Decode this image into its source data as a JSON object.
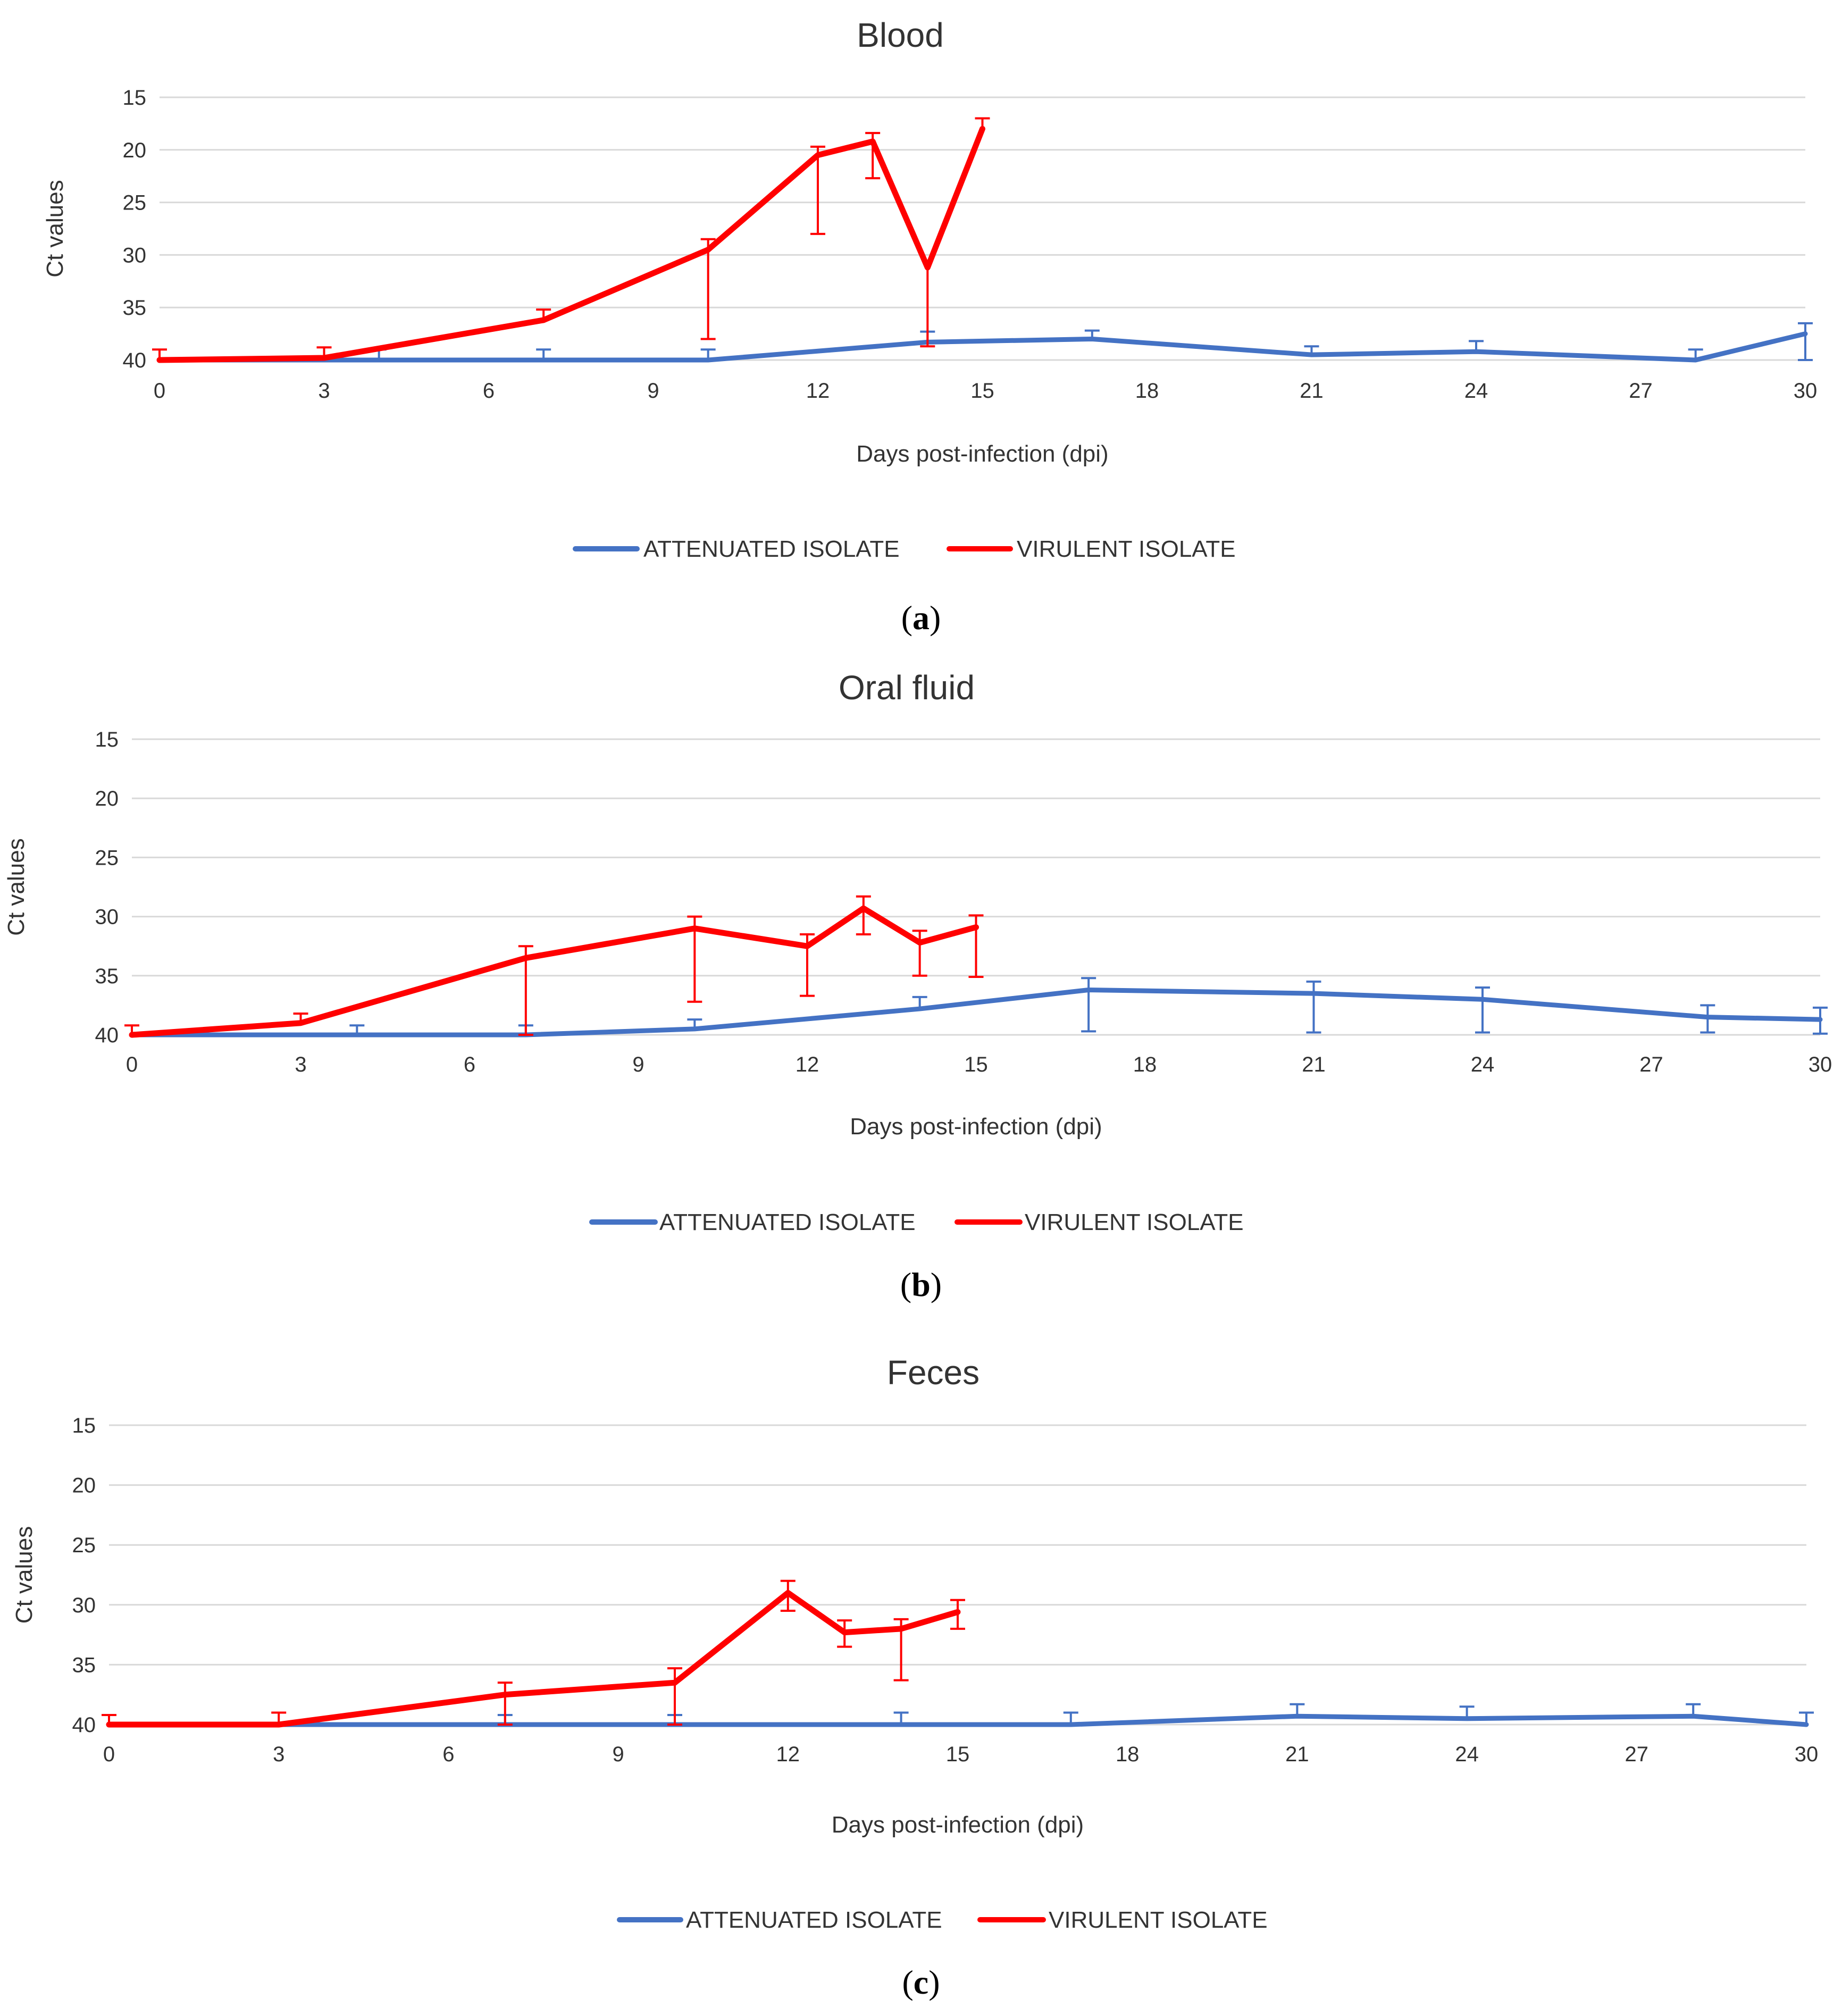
{
  "colors": {
    "attenuated": "#4472C4",
    "virulent": "#FF0000"
  },
  "chart_data": [
    {
      "type": "line",
      "title": "Blood",
      "caption_letter": "a",
      "ylabel": "Ct values",
      "xlabel": "Days post-infection (dpi)",
      "ylim": [
        15,
        40
      ],
      "y_inverted": true,
      "yticks": [
        15,
        20,
        25,
        30,
        35,
        40
      ],
      "xlim": [
        0,
        30
      ],
      "xticks": [
        0,
        3,
        6,
        9,
        12,
        15,
        18,
        21,
        24,
        27,
        30
      ],
      "legend_position": "bottom",
      "series": [
        {
          "name": "ATTENUATED ISOLATE",
          "color_key": "attenuated",
          "x": [
            0,
            4,
            7,
            10,
            14,
            17,
            21,
            24,
            28,
            30
          ],
          "y": [
            40,
            40,
            40,
            40,
            38.3,
            38.0,
            39.5,
            39.2,
            40,
            37.5
          ],
          "err_up": [
            0,
            1.0,
            1.0,
            1.0,
            1.0,
            0.8,
            0.8,
            1.0,
            1.0,
            1.0
          ],
          "err_down": [
            0,
            0,
            0,
            0,
            0,
            0,
            0,
            0,
            0,
            2.5
          ]
        },
        {
          "name": "VIRULENT ISOLATE",
          "color_key": "virulent",
          "x": [
            0,
            3,
            7,
            10,
            12,
            13,
            14,
            15
          ],
          "y": [
            40,
            39.8,
            36.2,
            29.5,
            20.5,
            19.2,
            31.2,
            18.0
          ],
          "err_up": [
            1.0,
            1.0,
            1.0,
            1.0,
            0.8,
            0.8,
            0,
            1.0
          ],
          "err_down": [
            0,
            0,
            0,
            8.5,
            7.5,
            3.5,
            7.5,
            0
          ]
        }
      ]
    },
    {
      "type": "line",
      "title": "Oral fluid",
      "caption_letter": "b",
      "ylabel": "Ct values",
      "xlabel": "Days post-infection (dpi)",
      "ylim": [
        15,
        40
      ],
      "y_inverted": true,
      "yticks": [
        15,
        20,
        25,
        30,
        35,
        40
      ],
      "xlim": [
        0,
        30
      ],
      "xticks": [
        0,
        3,
        6,
        9,
        12,
        15,
        18,
        21,
        24,
        27,
        30
      ],
      "legend_position": "bottom",
      "series": [
        {
          "name": "ATTENUATED ISOLATE",
          "color_key": "attenuated",
          "x": [
            0,
            4,
            7,
            10,
            14,
            17,
            21,
            24,
            28,
            30
          ],
          "y": [
            40,
            40,
            40,
            39.5,
            37.8,
            36.2,
            36.5,
            37.0,
            38.5,
            38.7
          ],
          "err_up": [
            0,
            0.8,
            0.8,
            0.8,
            1.0,
            1.0,
            1.0,
            1.0,
            1.0,
            1.0
          ],
          "err_down": [
            0,
            0,
            0,
            0,
            0,
            3.5,
            3.3,
            2.8,
            1.3,
            1.2
          ]
        },
        {
          "name": "VIRULENT ISOLATE",
          "color_key": "virulent",
          "x": [
            0,
            3,
            7,
            10,
            12,
            13,
            14,
            15
          ],
          "y": [
            40,
            39.0,
            33.5,
            31.0,
            32.5,
            29.3,
            32.2,
            30.9
          ],
          "err_up": [
            0.8,
            0.8,
            1.0,
            1.0,
            1.0,
            1.0,
            1.0,
            1.0
          ],
          "err_down": [
            0,
            0,
            6.5,
            6.2,
            4.2,
            2.2,
            2.8,
            4.2
          ]
        }
      ]
    },
    {
      "type": "line",
      "title": "Feces",
      "caption_letter": "c",
      "ylabel": "Ct values",
      "xlabel": "Days post-infection (dpi)",
      "ylim": [
        15,
        40
      ],
      "y_inverted": true,
      "yticks": [
        15,
        20,
        25,
        30,
        35,
        40
      ],
      "xlim": [
        0,
        30
      ],
      "xticks": [
        0,
        3,
        6,
        9,
        12,
        15,
        18,
        21,
        24,
        27,
        30
      ],
      "legend_position": "bottom",
      "series": [
        {
          "name": "ATTENUATED ISOLATE",
          "color_key": "attenuated",
          "x": [
            0,
            4,
            7,
            10,
            14,
            17,
            21,
            24,
            28,
            30
          ],
          "y": [
            40,
            40,
            40,
            40,
            40,
            40,
            39.3,
            39.5,
            39.3,
            40
          ],
          "err_up": [
            0,
            0,
            0.8,
            0.8,
            1.0,
            1.0,
            1.0,
            1.0,
            1.0,
            1.0
          ],
          "err_down": [
            0,
            0,
            0,
            0,
            0,
            0,
            0,
            0,
            0,
            0
          ]
        },
        {
          "name": "VIRULENT ISOLATE",
          "color_key": "virulent",
          "x": [
            0,
            3,
            7,
            10,
            12,
            13,
            14,
            15
          ],
          "y": [
            40,
            40,
            37.5,
            36.5,
            29.0,
            32.3,
            32.0,
            30.6
          ],
          "err_up": [
            0.8,
            1.0,
            1.0,
            1.2,
            1.0,
            1.0,
            0.8,
            1.0
          ],
          "err_down": [
            0,
            0,
            2.5,
            3.5,
            1.5,
            1.2,
            4.3,
            1.4
          ]
        }
      ]
    }
  ]
}
